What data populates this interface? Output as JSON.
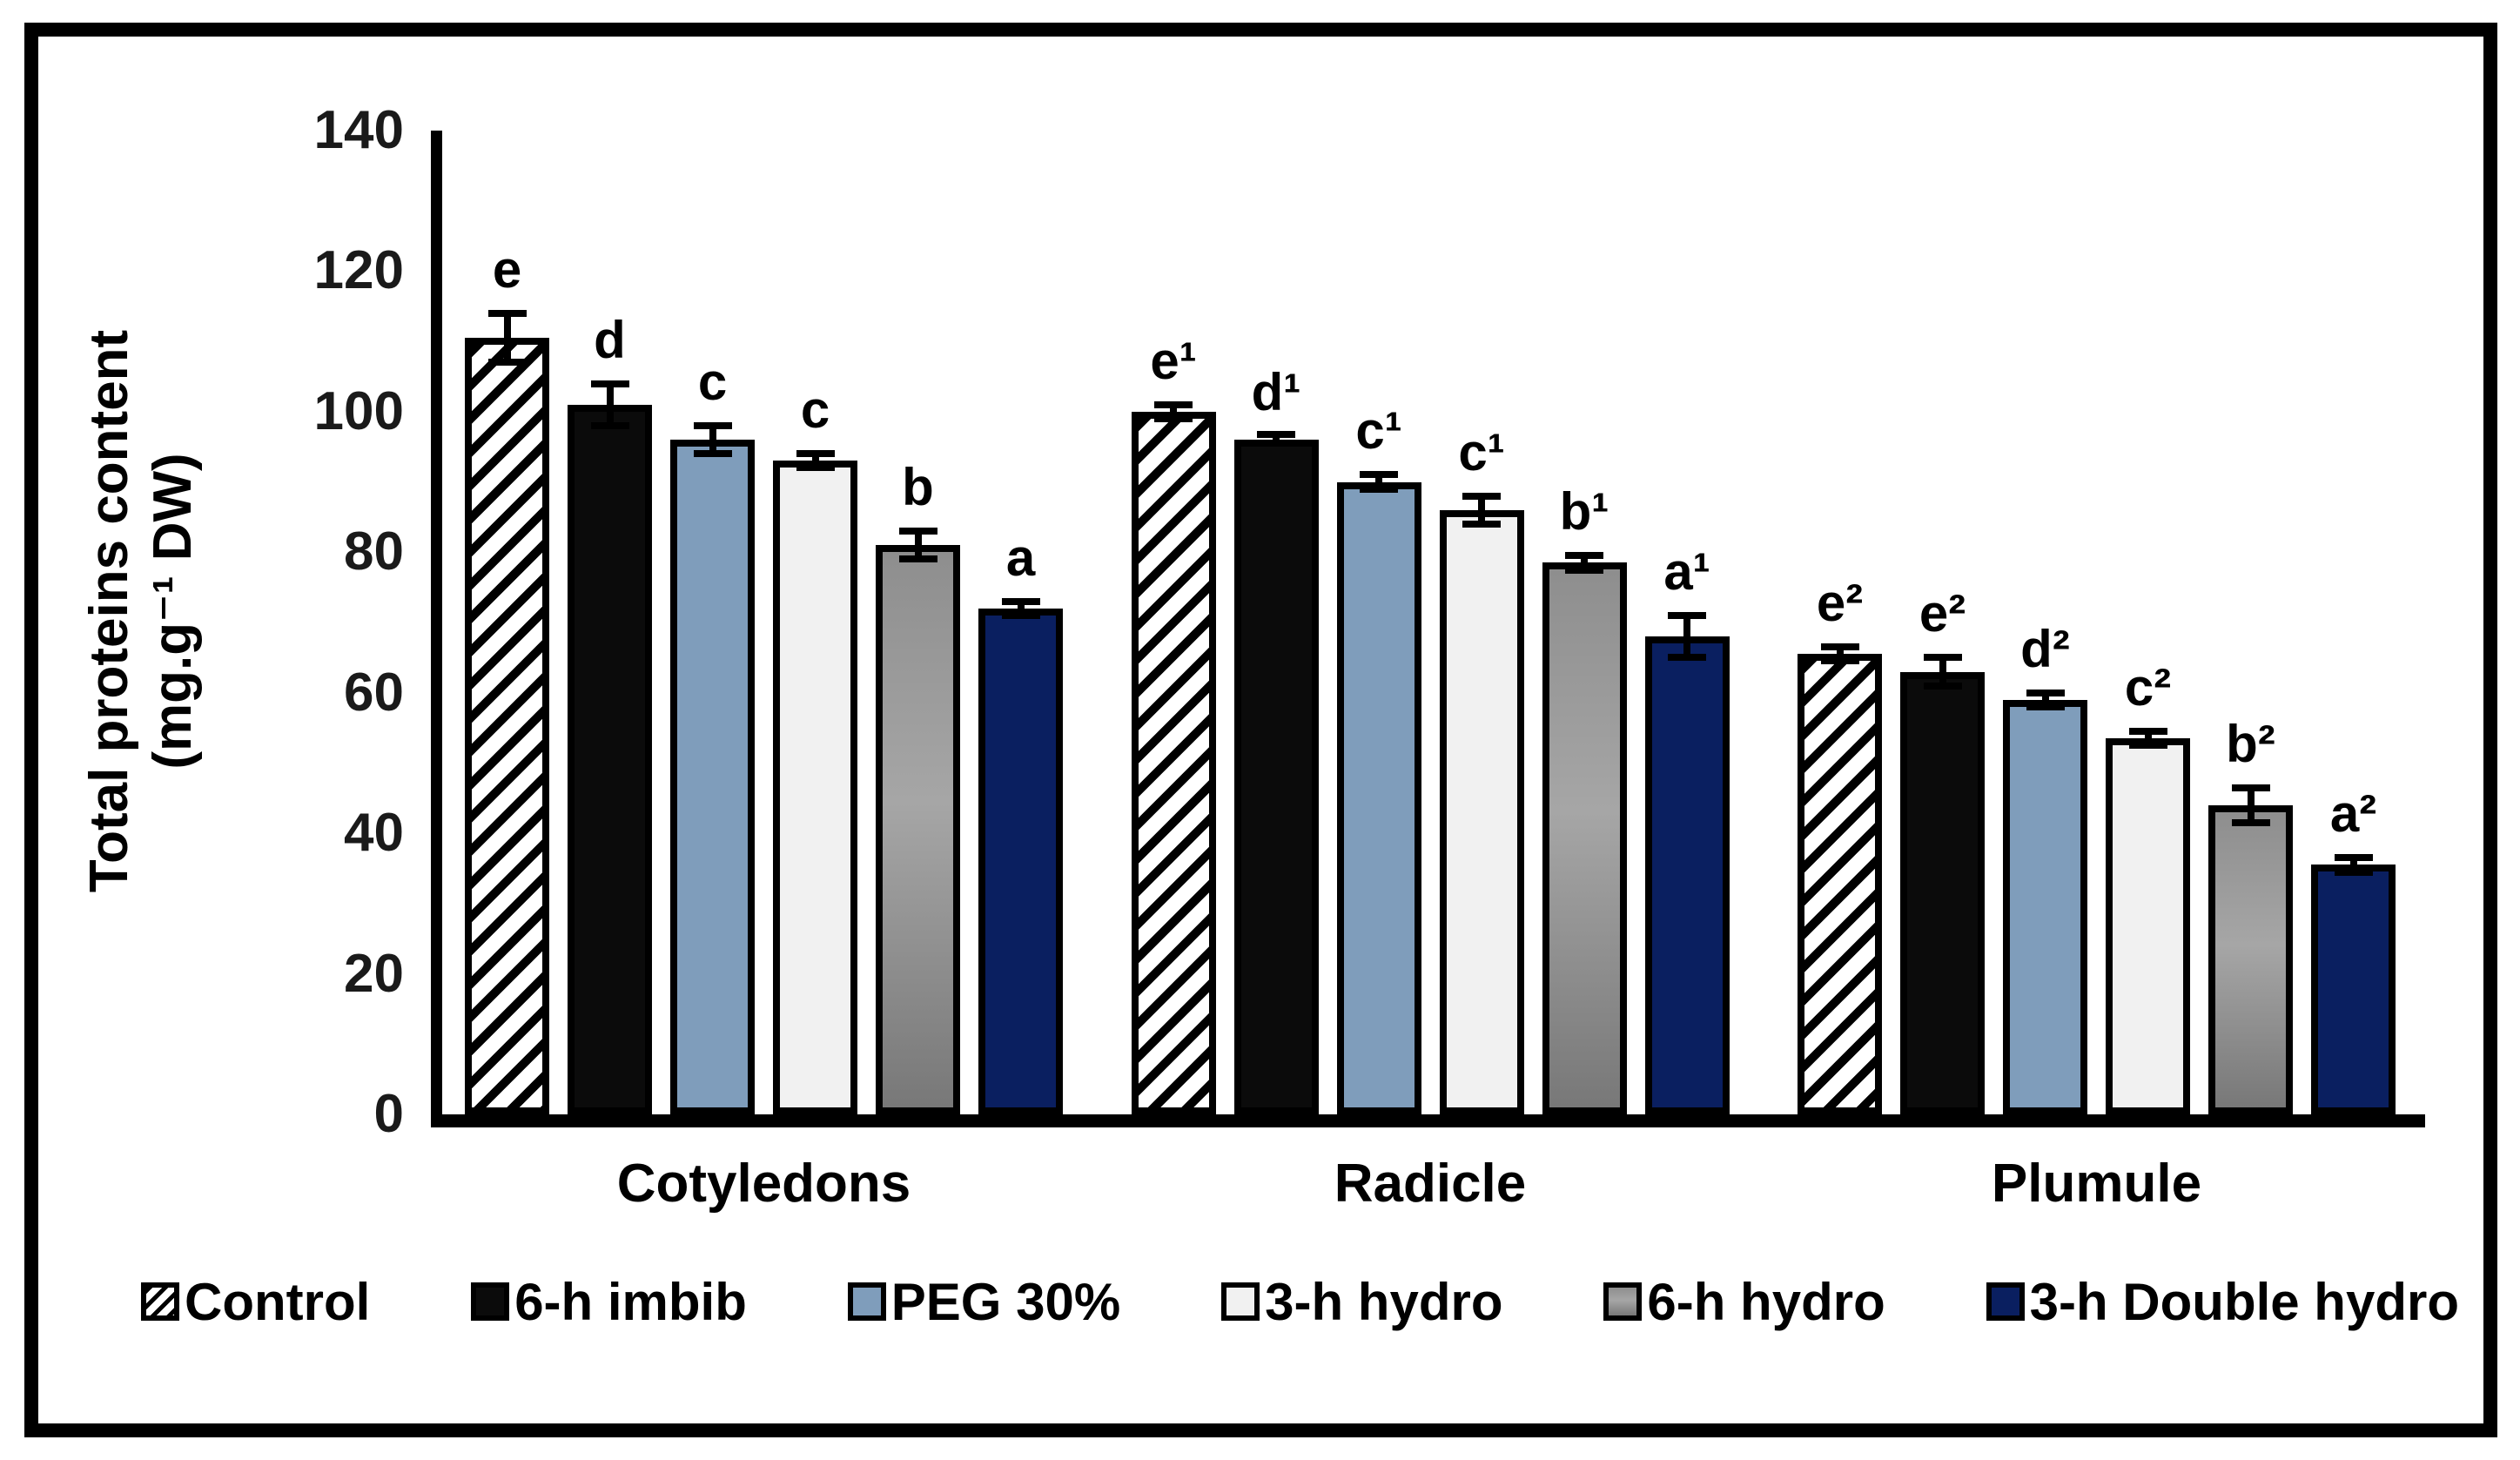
{
  "figure": {
    "ylabel_line1": "Total proteins content",
    "ylabel_line2": "(mg.g⁻¹ DW)"
  },
  "colors": {
    "axis": "#000000",
    "hatch_foreground": "#000000",
    "hatch_background": "#ffffff",
    "black_bar": "#0b0b0b",
    "blue_bar": "#7f9dbb",
    "white_bar": "#f1f1f1",
    "gray_bar_top": "#8e8e8e",
    "gray_bar_mid": "#a6a6a6",
    "gray_bar_bottom": "#787878",
    "navy_bar": "#0a1f60"
  },
  "chart_data": {
    "type": "bar",
    "title": "",
    "xlabel": "",
    "ylabel": "Total proteins content (mg.g⁻¹ DW)",
    "ylim": [
      0,
      140
    ],
    "yticks": [
      0,
      20,
      40,
      60,
      80,
      100,
      120,
      140
    ],
    "grid": false,
    "legend_position": "bottom",
    "categories": [
      "Cotyledons",
      "Radicle",
      "Plumule"
    ],
    "series": [
      {
        "name": "Control",
        "fill": {
          "type": "hatch",
          "fg": "#000000",
          "bg": "#ffffff"
        },
        "values": [
          110.5,
          100,
          65.5
        ],
        "errors": [
          4,
          1.5,
          1.5
        ],
        "letters": [
          "e",
          "e¹",
          "e²"
        ]
      },
      {
        "name": "6-h imbib",
        "fill": {
          "type": "solid",
          "color": "#0b0b0b"
        },
        "values": [
          101,
          96,
          63
        ],
        "errors": [
          3.5,
          1,
          2.5
        ],
        "letters": [
          "d",
          "d¹",
          "e²"
        ]
      },
      {
        "name": "PEG 30%",
        "fill": {
          "type": "solid",
          "color": "#7f9dbb"
        },
        "values": [
          96,
          90,
          59
        ],
        "errors": [
          2.5,
          1.5,
          1.5
        ],
        "letters": [
          "c",
          "c¹",
          "d²"
        ]
      },
      {
        "name": "3-h hydro",
        "fill": {
          "type": "solid",
          "color": "#f1f1f1"
        },
        "values": [
          93,
          86,
          53.5
        ],
        "errors": [
          1.5,
          2.5,
          1.5
        ],
        "letters": [
          "c",
          "c¹",
          "c²"
        ]
      },
      {
        "name": "6-h hydro",
        "fill": {
          "type": "gradient",
          "from": "#8e8e8e",
          "mid": "#a6a6a6",
          "to": "#787878"
        },
        "values": [
          81,
          78.5,
          44
        ],
        "errors": [
          2.5,
          1.5,
          3
        ],
        "letters": [
          "b",
          "b¹",
          "b²"
        ]
      },
      {
        "name": "3-h Double hydro",
        "fill": {
          "type": "solid",
          "color": "#0a1f60"
        },
        "values": [
          72,
          68,
          35.5
        ],
        "errors": [
          1.5,
          3.5,
          1.5
        ],
        "letters": [
          "a",
          "a¹",
          "a²"
        ]
      }
    ]
  }
}
